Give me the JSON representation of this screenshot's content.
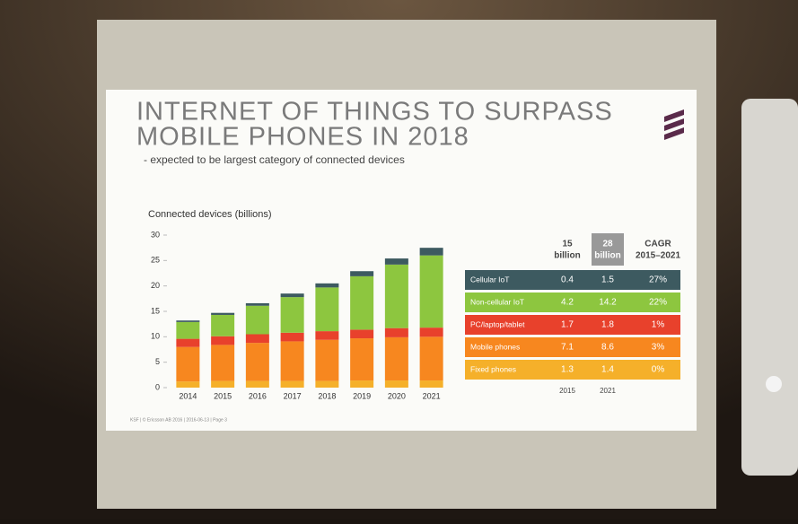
{
  "title_line1": "INTERNET OF THINGS TO SURPASS",
  "title_line2": "MOBILE PHONES IN 2018",
  "subtitle": "- expected to be largest category of connected devices",
  "footer": "KSF | © Ericsson AB 2016 | 2016-06-13 | Page 3",
  "chart_data": {
    "type": "bar",
    "stacked": true,
    "title": "Connected devices (billions)",
    "categories": [
      "2014",
      "2015",
      "2016",
      "2017",
      "2018",
      "2019",
      "2020",
      "2021"
    ],
    "series": [
      {
        "name": "Fixed phones",
        "color": "#f5b02a",
        "values": [
          1.2,
          1.3,
          1.3,
          1.3,
          1.3,
          1.4,
          1.4,
          1.4
        ]
      },
      {
        "name": "Mobile phones",
        "color": "#f7871f",
        "values": [
          6.8,
          7.1,
          7.5,
          7.8,
          8.1,
          8.3,
          8.5,
          8.6
        ]
      },
      {
        "name": "PC/laptop/tablet",
        "color": "#e8412c",
        "values": [
          1.6,
          1.7,
          1.7,
          1.7,
          1.7,
          1.7,
          1.8,
          1.8
        ]
      },
      {
        "name": "Non-cellular IoT",
        "color": "#8dc63f",
        "values": [
          3.3,
          4.2,
          5.6,
          7.0,
          8.6,
          10.5,
          12.5,
          14.2
        ]
      },
      {
        "name": "Cellular IoT",
        "color": "#3d5a60",
        "values": [
          0.3,
          0.4,
          0.5,
          0.7,
          0.8,
          1.0,
          1.2,
          1.5
        ]
      }
    ],
    "ylim": [
      0,
      30
    ],
    "yticks": [
      0,
      5,
      10,
      15,
      20,
      25,
      30
    ]
  },
  "table": {
    "header": [
      [
        "15",
        "billion"
      ],
      [
        "28",
        "billion"
      ],
      [
        "CAGR",
        "2015–2021"
      ]
    ],
    "rows": [
      [
        "1.3",
        "1.4",
        "0%"
      ],
      [
        "7.1",
        "8.6",
        "3%"
      ],
      [
        "1.7",
        "1.8",
        "1%"
      ],
      [
        "4.2",
        "14.2",
        "22%"
      ],
      [
        "0.4",
        "1.5",
        "27%"
      ]
    ],
    "footer": [
      "2015",
      "2021"
    ]
  }
}
